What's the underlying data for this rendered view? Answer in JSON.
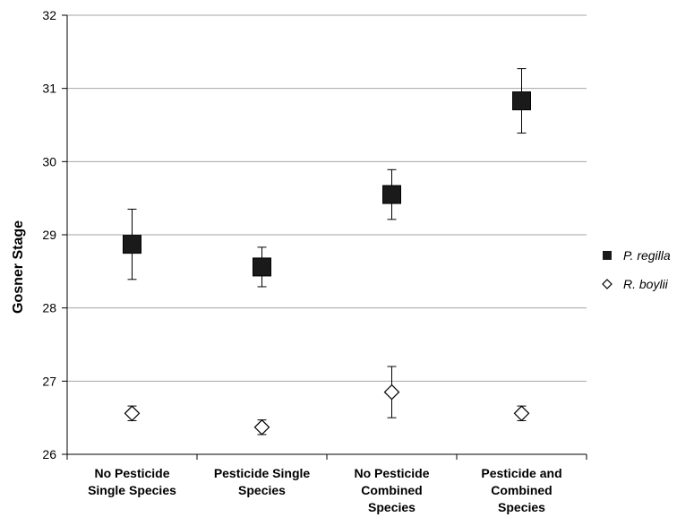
{
  "chart_data": {
    "type": "scatter",
    "title": "",
    "xlabel": "",
    "ylabel": "Gosner Stage",
    "ylim": [
      26,
      32
    ],
    "yticks": [
      26,
      27,
      28,
      29,
      30,
      31,
      32
    ],
    "grid": true,
    "legend_position": "right",
    "categories": [
      [
        "No Pesticide",
        "Single Species"
      ],
      [
        "Pesticide Single",
        "Species"
      ],
      [
        "No Pesticide",
        "Combined",
        "Species"
      ],
      [
        "Pesticide and",
        "Combined",
        "Species"
      ]
    ],
    "series": [
      {
        "name": "P. regilla",
        "marker": "filled-square",
        "color": "#1a1a1a",
        "values": [
          28.87,
          28.56,
          29.55,
          30.83
        ],
        "error": [
          0.48,
          0.27,
          0.34,
          0.44
        ]
      },
      {
        "name": "R. boylii",
        "marker": "open-diamond",
        "color": "#000000",
        "values": [
          26.56,
          26.37,
          26.85,
          26.56
        ],
        "error": [
          0.1,
          0.1,
          0.35,
          0.1
        ]
      }
    ]
  }
}
